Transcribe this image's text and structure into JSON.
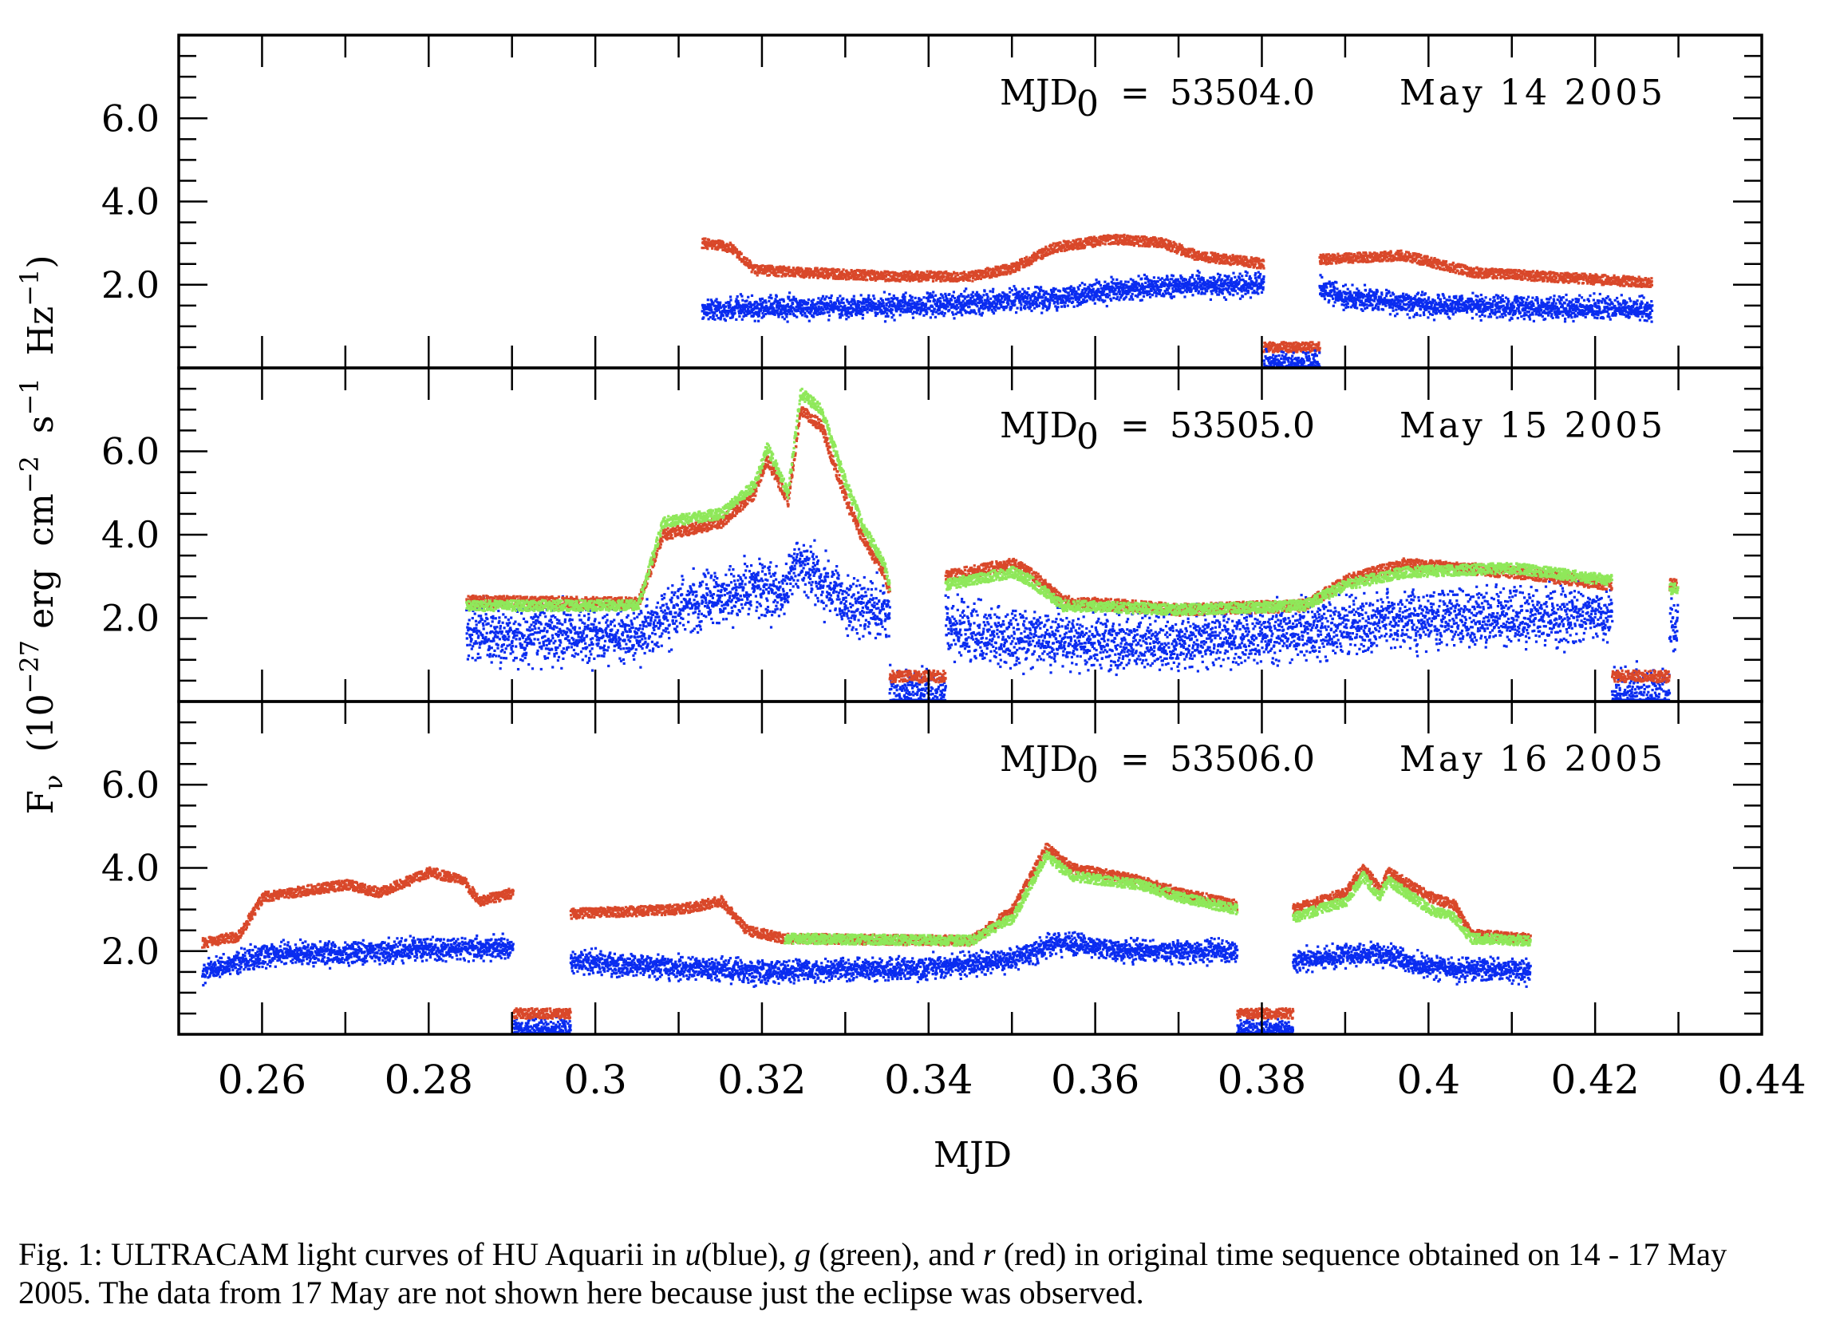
{
  "chart_data": {
    "type": "scatter",
    "xlabel": "MJD",
    "ylabel_parts": [
      {
        "t": "F"
      },
      {
        "t": "ν",
        "sub": true
      },
      {
        "t": "  (10"
      },
      {
        "t": "−27",
        "sup": true
      },
      {
        "t": " erg  cm"
      },
      {
        "t": "−2",
        "sup": true
      },
      {
        "t": "  s"
      },
      {
        "t": "−1",
        "sup": true
      },
      {
        "t": "  Hz"
      },
      {
        "t": "−1",
        "sup": true
      },
      {
        "t": ")"
      }
    ],
    "xlim": [
      0.25,
      0.44
    ],
    "xticks": [
      0.26,
      0.28,
      0.3,
      0.32,
      0.34,
      0.36,
      0.38,
      0.4,
      0.42,
      0.44
    ],
    "xtick_labels": [
      "0.26",
      "0.28",
      "0.3",
      "0.32",
      "0.34",
      "0.36",
      "0.38",
      "0.4",
      "0.42",
      "0.44"
    ],
    "ylim": [
      0,
      8
    ],
    "yticks": [
      2,
      4,
      6
    ],
    "ytick_labels": [
      "2.0",
      "4.0",
      "6.0"
    ],
    "colors": {
      "u": "#0a2cf0",
      "g": "#8fe85a",
      "r": "#d9482a"
    },
    "panels": [
      {
        "annotation": {
          "label": "MJD",
          "sub": "0",
          "eq": "=",
          "value": "53504.0",
          "date": "May  14  2005"
        },
        "series": [
          {
            "name": "r",
            "noise": 0.12,
            "segments": [
              [
                [
                  0.3127,
                  3.0
                ],
                [
                  0.316,
                  2.9
                ],
                [
                  0.319,
                  2.35
                ],
                [
                  0.335,
                  2.2
                ],
                [
                  0.345,
                  2.2
                ],
                [
                  0.35,
                  2.4
                ],
                [
                  0.355,
                  2.9
                ],
                [
                  0.362,
                  3.1
                ],
                [
                  0.368,
                  3.0
                ],
                [
                  0.372,
                  2.7
                ],
                [
                  0.3801,
                  2.5
                ]
              ],
              [
                [
                  0.3801,
                  0.5
                ],
                [
                  0.3868,
                  0.5
                ]
              ],
              [
                [
                  0.3868,
                  2.6
                ],
                [
                  0.397,
                  2.7
                ],
                [
                  0.405,
                  2.3
                ],
                [
                  0.4267,
                  2.05
                ]
              ]
            ]
          },
          {
            "name": "u",
            "noise": 0.3,
            "segments": [
              [
                [
                  0.3127,
                  1.4
                ],
                [
                  0.34,
                  1.5
                ],
                [
                  0.355,
                  1.7
                ],
                [
                  0.37,
                  2.0
                ],
                [
                  0.3801,
                  2.0
                ]
              ],
              [
                [
                  0.3801,
                  0.1
                ],
                [
                  0.3868,
                  0.1
                ]
              ],
              [
                [
                  0.3868,
                  1.9
                ],
                [
                  0.39,
                  1.7
                ],
                [
                  0.4,
                  1.5
                ],
                [
                  0.4267,
                  1.4
                ]
              ]
            ]
          }
        ]
      },
      {
        "annotation": {
          "label": "MJD",
          "sub": "0",
          "eq": "=",
          "value": "53505.0",
          "date": "May  15  2005"
        },
        "series": [
          {
            "name": "u",
            "noise": 0.75,
            "segments": [
              [
                [
                  0.2844,
                  1.6
                ],
                [
                  0.305,
                  1.6
                ],
                [
                  0.31,
                  2.3
                ],
                [
                  0.32,
                  2.8
                ],
                [
                  0.322,
                  2.5
                ],
                [
                  0.3245,
                  3.4
                ],
                [
                  0.33,
                  2.3
                ],
                [
                  0.3352,
                  2.1
                ]
              ],
              [
                [
                  0.3352,
                  0.1
                ],
                [
                  0.3419,
                  0.1
                ]
              ],
              [
                [
                  0.3419,
                  1.8
                ],
                [
                  0.35,
                  1.5
                ],
                [
                  0.37,
                  1.4
                ],
                [
                  0.385,
                  1.7
                ],
                [
                  0.4,
                  2.0
                ],
                [
                  0.4219,
                  2.1
                ]
              ],
              [
                [
                  0.4219,
                  0.1
                ],
                [
                  0.4288,
                  0.1
                ]
              ],
              [
                [
                  0.4288,
                  1.8
                ],
                [
                  0.4298,
                  1.8
                ]
              ]
            ]
          },
          {
            "name": "r",
            "noise": 0.14,
            "segments": [
              [
                [
                  0.2844,
                  2.4
                ],
                [
                  0.305,
                  2.35
                ],
                [
                  0.308,
                  4.0
                ],
                [
                  0.315,
                  4.3
                ],
                [
                  0.319,
                  5.0
                ],
                [
                  0.3205,
                  5.8
                ],
                [
                  0.3225,
                  5.0
                ],
                [
                  0.323,
                  4.8
                ],
                [
                  0.3245,
                  7.0
                ],
                [
                  0.327,
                  6.6
                ],
                [
                  0.33,
                  4.8
                ],
                [
                  0.332,
                  3.9
                ],
                [
                  0.3345,
                  3.1
                ],
                [
                  0.3352,
                  2.6
                ]
              ],
              [
                [
                  0.3352,
                  0.6
                ],
                [
                  0.3419,
                  0.6
                ]
              ],
              [
                [
                  0.3419,
                  3.0
                ],
                [
                  0.35,
                  3.3
                ],
                [
                  0.352,
                  3.1
                ],
                [
                  0.356,
                  2.4
                ],
                [
                  0.37,
                  2.2
                ],
                [
                  0.385,
                  2.3
                ],
                [
                  0.39,
                  2.9
                ],
                [
                  0.397,
                  3.3
                ],
                [
                  0.41,
                  3.1
                ],
                [
                  0.4219,
                  2.8
                ]
              ],
              [
                [
                  0.4219,
                  0.6
                ],
                [
                  0.4288,
                  0.6
                ]
              ],
              [
                [
                  0.4288,
                  2.8
                ],
                [
                  0.4298,
                  2.8
                ]
              ]
            ]
          },
          {
            "name": "g",
            "noise": 0.13,
            "segments": [
              [
                [
                  0.2844,
                  2.3
                ],
                [
                  0.305,
                  2.3
                ],
                [
                  0.308,
                  4.3
                ],
                [
                  0.315,
                  4.5
                ],
                [
                  0.319,
                  5.2
                ],
                [
                  0.3205,
                  6.1
                ],
                [
                  0.3225,
                  5.2
                ],
                [
                  0.323,
                  5.0
                ],
                [
                  0.3245,
                  7.4
                ],
                [
                  0.327,
                  7.0
                ],
                [
                  0.33,
                  5.2
                ],
                [
                  0.332,
                  4.2
                ],
                [
                  0.3345,
                  3.3
                ],
                [
                  0.3352,
                  2.8
                ]
              ],
              [
                [
                  0.3419,
                  2.8
                ],
                [
                  0.35,
                  3.1
                ],
                [
                  0.352,
                  2.9
                ],
                [
                  0.356,
                  2.3
                ],
                [
                  0.37,
                  2.2
                ],
                [
                  0.385,
                  2.3
                ],
                [
                  0.39,
                  2.8
                ],
                [
                  0.397,
                  3.1
                ],
                [
                  0.41,
                  3.2
                ],
                [
                  0.4219,
                  2.9
                ]
              ],
              [
                [
                  0.4288,
                  2.7
                ],
                [
                  0.4298,
                  2.7
                ]
              ]
            ]
          }
        ]
      },
      {
        "annotation": {
          "label": "MJD",
          "sub": "0",
          "eq": "=",
          "value": "53506.0",
          "date": "May  16  2005"
        },
        "series": [
          {
            "name": "u",
            "noise": 0.3,
            "segments": [
              [
                [
                  0.2527,
                  1.5
                ],
                [
                  0.26,
                  1.9
                ],
                [
                  0.29,
                  2.1
                ]
              ],
              [
                [
                  0.29,
                  0.1
                ],
                [
                  0.2969,
                  0.1
                ]
              ],
              [
                [
                  0.2969,
                  1.75
                ],
                [
                  0.32,
                  1.5
                ],
                [
                  0.34,
                  1.6
                ],
                [
                  0.35,
                  1.8
                ],
                [
                  0.355,
                  2.2
                ],
                [
                  0.365,
                  2.0
                ],
                [
                  0.3769,
                  2.0
                ]
              ],
              [
                [
                  0.3769,
                  0.1
                ],
                [
                  0.3836,
                  0.1
                ]
              ],
              [
                [
                  0.3836,
                  1.8
                ],
                [
                  0.394,
                  1.95
                ],
                [
                  0.4,
                  1.6
                ],
                [
                  0.4121,
                  1.5
                ]
              ]
            ]
          },
          {
            "name": "r",
            "noise": 0.12,
            "segments": [
              [
                [
                  0.2527,
                  2.2
                ],
                [
                  0.257,
                  2.35
                ],
                [
                  0.26,
                  3.3
                ],
                [
                  0.27,
                  3.6
                ],
                [
                  0.274,
                  3.4
                ],
                [
                  0.28,
                  3.9
                ],
                [
                  0.284,
                  3.7
                ],
                [
                  0.286,
                  3.2
                ],
                [
                  0.29,
                  3.4
                ]
              ],
              [
                [
                  0.29,
                  0.5
                ],
                [
                  0.2969,
                  0.5
                ]
              ],
              [
                [
                  0.2969,
                  2.9
                ],
                [
                  0.31,
                  3.0
                ],
                [
                  0.315,
                  3.2
                ],
                [
                  0.318,
                  2.5
                ],
                [
                  0.3226,
                  2.3
                ],
                [
                  0.345,
                  2.25
                ],
                [
                  0.35,
                  3.0
                ],
                [
                  0.354,
                  4.5
                ],
                [
                  0.357,
                  4.0
                ],
                [
                  0.365,
                  3.7
                ],
                [
                  0.37,
                  3.4
                ],
                [
                  0.3769,
                  3.1
                ]
              ],
              [
                [
                  0.3769,
                  0.5
                ],
                [
                  0.3836,
                  0.5
                ]
              ],
              [
                [
                  0.3836,
                  3.0
                ],
                [
                  0.39,
                  3.4
                ],
                [
                  0.392,
                  4.0
                ],
                [
                  0.394,
                  3.5
                ],
                [
                  0.395,
                  3.9
                ],
                [
                  0.4,
                  3.3
                ],
                [
                  0.403,
                  3.1
                ],
                [
                  0.405,
                  2.4
                ],
                [
                  0.4121,
                  2.3
                ]
              ]
            ]
          },
          {
            "name": "g",
            "noise": 0.12,
            "segments": [
              [
                [
                  0.3226,
                  2.3
                ],
                [
                  0.345,
                  2.25
                ],
                [
                  0.35,
                  2.8
                ],
                [
                  0.354,
                  4.3
                ],
                [
                  0.357,
                  3.8
                ],
                [
                  0.365,
                  3.6
                ],
                [
                  0.37,
                  3.3
                ],
                [
                  0.3769,
                  3.0
                ]
              ],
              [
                [
                  0.3836,
                  2.8
                ],
                [
                  0.39,
                  3.2
                ],
                [
                  0.392,
                  3.8
                ],
                [
                  0.394,
                  3.3
                ],
                [
                  0.395,
                  3.7
                ],
                [
                  0.4,
                  3.0
                ],
                [
                  0.403,
                  2.8
                ],
                [
                  0.405,
                  2.3
                ],
                [
                  0.4121,
                  2.25
                ]
              ]
            ]
          }
        ]
      }
    ]
  },
  "caption": {
    "line1": [
      {
        "t": "Fig. 1: ULTRACAM light curves of HU Aquarii in "
      },
      {
        "t": "u",
        "i": true
      },
      {
        "t": "(blue), "
      },
      {
        "t": "g",
        "i": true
      },
      {
        "t": " (green), and "
      },
      {
        "t": "r",
        "i": true
      },
      {
        "t": " (red) in original time sequence obtained on 14 - 17 May"
      }
    ],
    "line2": [
      {
        "t": "2005. The data from 17 May are not shown here because just the eclipse was observed."
      }
    ]
  }
}
